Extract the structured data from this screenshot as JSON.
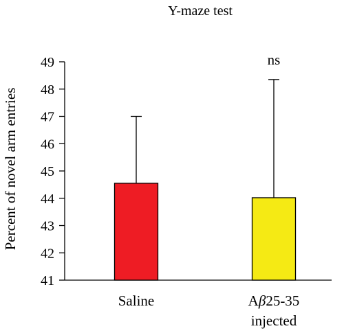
{
  "chart_data": {
    "type": "bar",
    "title": "Y-maze test",
    "xlabel": "",
    "ylabel": "Percent of novel arm entries",
    "ylim": [
      41,
      49
    ],
    "yticks": [
      41,
      42,
      43,
      44,
      45,
      46,
      47,
      48,
      49
    ],
    "categories": [
      {
        "lines": [
          "Saline"
        ],
        "italic_segment": null
      },
      {
        "lines": [
          "Aβ25-35",
          "injected"
        ],
        "italic_segment": "β"
      }
    ],
    "category_names": [
      "Saline",
      "Aβ25-35 injected"
    ],
    "values": [
      44.55,
      44.02
    ],
    "error_upper": [
      47.0,
      48.35
    ],
    "annotations": [
      "",
      "ns"
    ],
    "colors": [
      "#ee1c24",
      "#f5ea14"
    ],
    "bar_border_color": "#000000",
    "grid": false,
    "legend": "none"
  }
}
